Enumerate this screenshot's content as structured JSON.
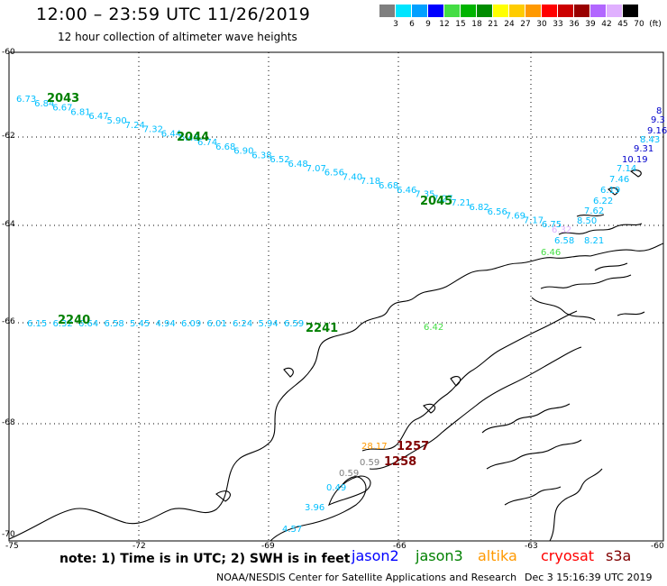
{
  "title": "12:00 – 23:59 UTC 11/26/2019",
  "subtitle": "12 hour collection of altimeter wave heights",
  "legend": {
    "unit": "(ft)",
    "bins": [
      {
        "label": "3",
        "color": "#7f7f7f"
      },
      {
        "label": "6",
        "color": "#00e5ff"
      },
      {
        "label": "9",
        "color": "#00a0ff"
      },
      {
        "label": "12",
        "color": "#0000ff"
      },
      {
        "label": "15",
        "color": "#44dd44"
      },
      {
        "label": "18",
        "color": "#00b400"
      },
      {
        "label": "21",
        "color": "#008c00"
      },
      {
        "label": "24",
        "color": "#ffff00"
      },
      {
        "label": "27",
        "color": "#ffcc00"
      },
      {
        "label": "30",
        "color": "#ff9900"
      },
      {
        "label": "33",
        "color": "#ff0000"
      },
      {
        "label": "36",
        "color": "#cc0000"
      },
      {
        "label": "39",
        "color": "#990000"
      },
      {
        "label": "42",
        "color": "#b266ff"
      },
      {
        "label": "45",
        "color": "#e0b0ff"
      },
      {
        "label": "70",
        "color": "#000000"
      }
    ]
  },
  "axes": {
    "lat_labels": [
      "-60",
      "-62",
      "-64",
      "-66",
      "-68",
      "-70"
    ],
    "lon_labels": [
      "-75",
      "-72",
      "-69",
      "-66",
      "-63",
      "-60"
    ]
  },
  "passes": [
    {
      "label": "2043",
      "color": "#008000"
    },
    {
      "label": "2044",
      "color": "#008000"
    },
    {
      "label": "2045",
      "color": "#008000"
    },
    {
      "label": "2240",
      "color": "#008000"
    },
    {
      "label": "2241",
      "color": "#008000"
    },
    {
      "label": "1257",
      "color": "#800000"
    },
    {
      "label": "1258",
      "color": "#800000"
    }
  ],
  "track_values": {
    "track_a": [
      "6.73",
      "6.84",
      "6.67",
      "6.81",
      "6.47",
      "5.90",
      "7.24",
      "7.32",
      "6.44",
      "6.45",
      "6.74",
      "6.68",
      "6.90",
      "6.38",
      "6.52",
      "6.48",
      "7.07",
      "6.56",
      "7.40",
      "7.18",
      "6.68",
      "6.46",
      "7.35",
      "7.27",
      "7.21",
      "6.82",
      "6.56",
      "7.69",
      "7.17",
      "6.75"
    ],
    "track_a_colors": "#00bfff",
    "track_ne": [
      "8",
      "9.3",
      "9.16",
      "8.43",
      "9.31",
      "10.19",
      "7.14",
      "7.46",
      "6.19",
      "6.22",
      "7.62",
      "8.50",
      "8.21"
    ],
    "track_b": [
      "6.15",
      "6.32",
      "6.64",
      "6.58",
      "5.45",
      "4.94",
      "6.09",
      "6.01",
      "6.24",
      "5.94",
      "6.59"
    ],
    "track_c": [
      "28.17",
      "0.59",
      "0.59",
      "0.49",
      "3.96",
      "4.57"
    ],
    "misc": [
      "6.32",
      "6.58",
      "6.46",
      "6.42"
    ]
  },
  "footer": {
    "note": "note:  1) Time is in UTC; 2) SWH is in feet",
    "satellites": [
      {
        "name": "jason2",
        "color": "#0000ff"
      },
      {
        "name": "jason3",
        "color": "#008000"
      },
      {
        "name": "altika",
        "color": "#ff9900"
      },
      {
        "name": "cryosat",
        "color": "#ff0000"
      },
      {
        "name": "s3a",
        "color": "#800000"
      }
    ],
    "credit": "NOAA/NESDIS Center for Satellite Applications and Research",
    "stamp": "Dec  3 15:16:39 UTC 2019"
  }
}
